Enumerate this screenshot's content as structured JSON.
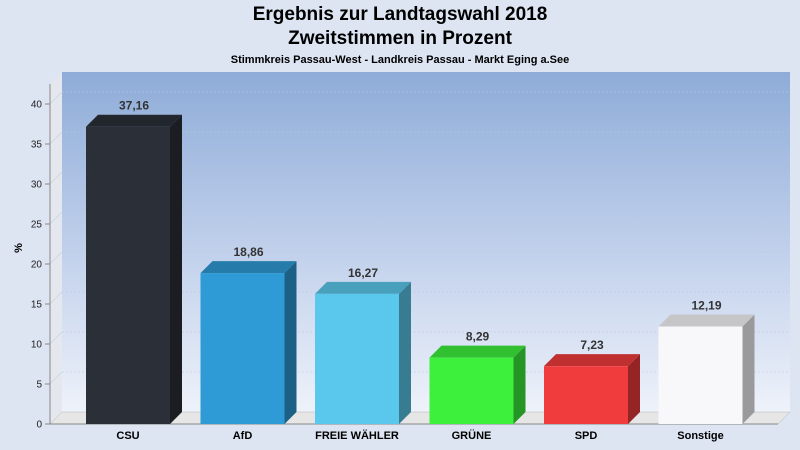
{
  "chart_data": {
    "type": "bar",
    "title": "Ergebnis zur Landtagswahl 2018",
    "title2": "Zweitstimmen in Prozent",
    "subtitle": "Stimmkreis Passau-West - Landkreis Passau - Markt Eging a.See",
    "ylabel": "%",
    "ylim": [
      0,
      40
    ],
    "yticks": [
      0,
      5,
      10,
      15,
      20,
      25,
      30,
      35,
      40
    ],
    "categories": [
      "CSU",
      "AfD",
      "FREIE WÄHLER",
      "GRÜNE",
      "SPD",
      "Sonstige"
    ],
    "values": [
      37.16,
      18.86,
      16.27,
      8.29,
      7.23,
      12.19
    ],
    "value_labels": [
      "37,16",
      "18,86",
      "16,27",
      "8,29",
      "7,23",
      "12,19"
    ],
    "colors": [
      "#2b2f38",
      "#2e9bd6",
      "#5ac8ec",
      "#3cf03c",
      "#f03c3c",
      "#f8f8fb"
    ],
    "grid": true
  }
}
